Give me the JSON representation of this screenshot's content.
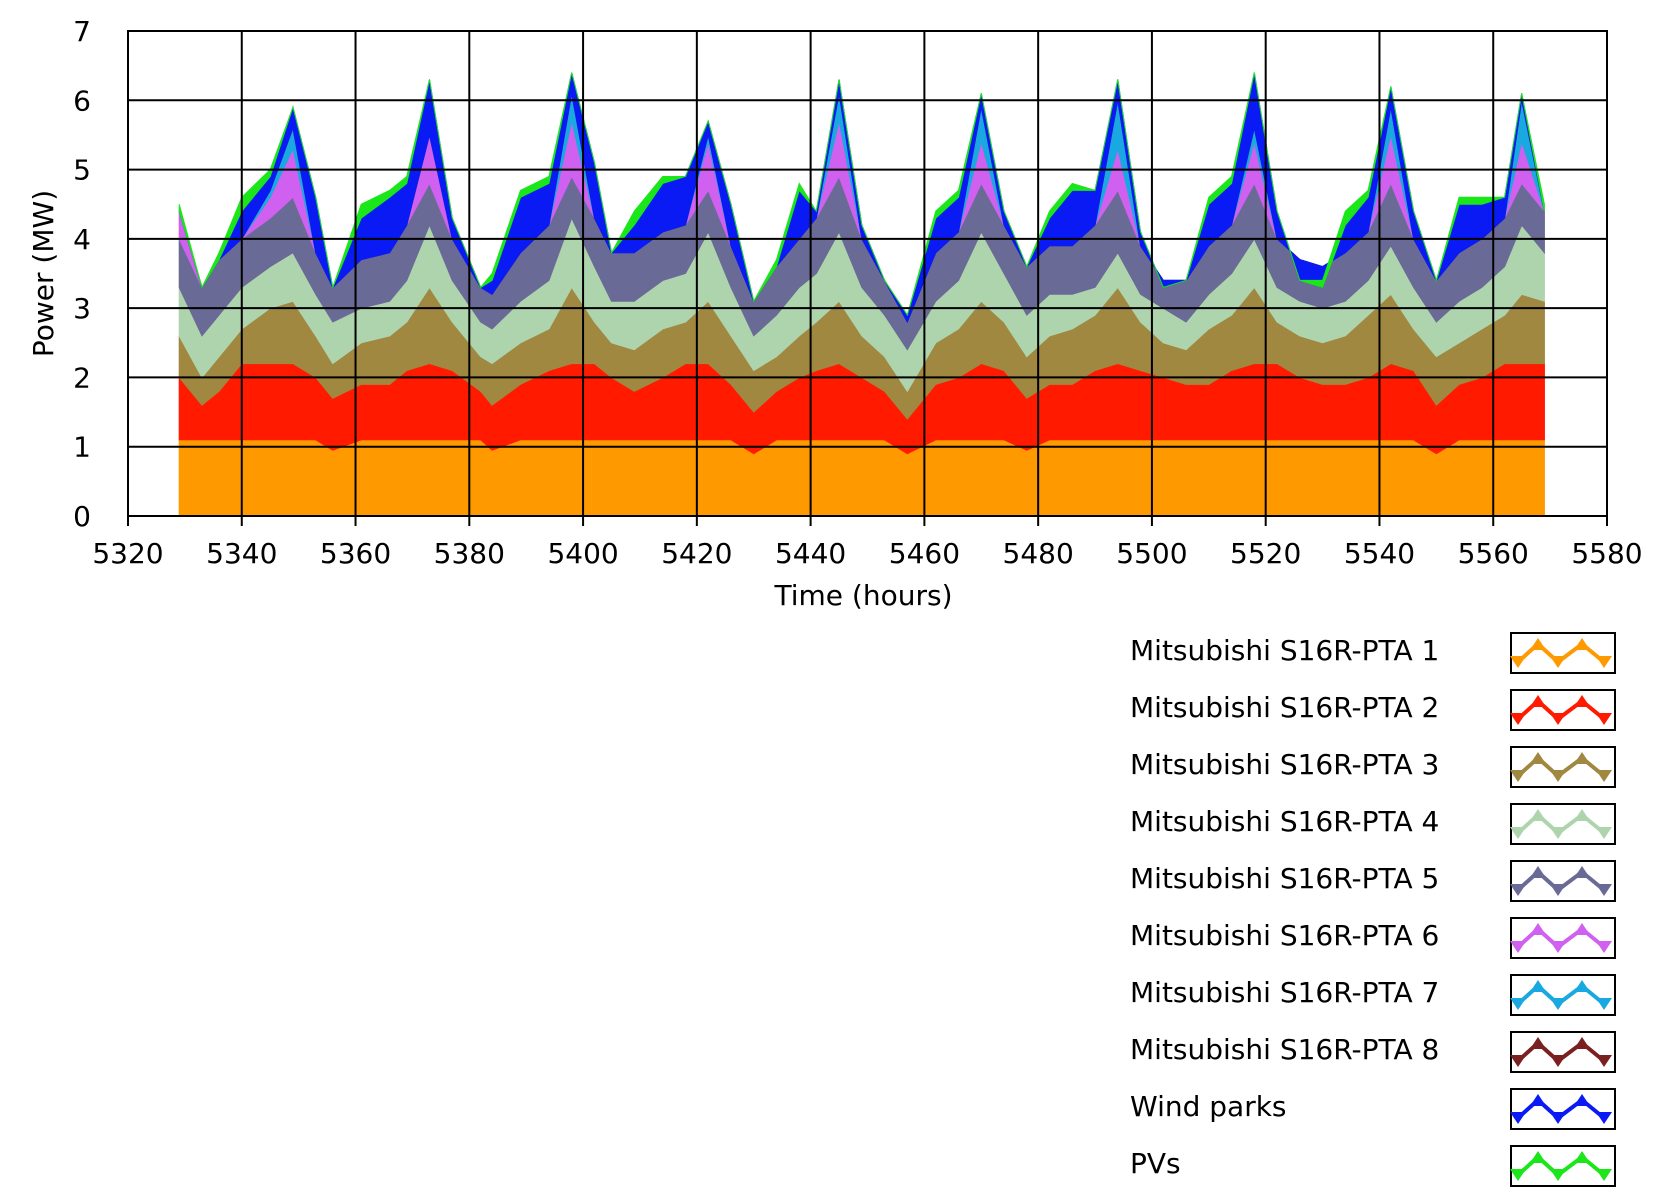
{
  "chart_data": {
    "type": "area",
    "stacked": true,
    "xlabel": "Time (hours)",
    "ylabel": "Power (MW)",
    "xlim": [
      5320,
      5580
    ],
    "ylim": [
      0,
      7
    ],
    "xticks": [
      5320,
      5340,
      5360,
      5380,
      5400,
      5420,
      5440,
      5460,
      5480,
      5500,
      5520,
      5540,
      5560,
      5580
    ],
    "yticks": [
      0,
      1,
      2,
      3,
      4,
      5,
      6,
      7
    ],
    "grid": true,
    "legend_position": "bottom-right",
    "series": [
      {
        "name": "Mitsubishi S16R-PTA 1",
        "color": "#ff9900"
      },
      {
        "name": "Mitsubishi S16R-PTA 2",
        "color": "#ff1a00"
      },
      {
        "name": "Mitsubishi S16R-PTA 3",
        "color": "#a08840"
      },
      {
        "name": "Mitsubishi S16R-PTA 4",
        "color": "#aed4ae"
      },
      {
        "name": "Mitsubishi S16R-PTA 5",
        "color": "#6a6a96"
      },
      {
        "name": "Mitsubishi S16R-PTA 6",
        "color": "#d060f0"
      },
      {
        "name": "Mitsubishi S16R-PTA 7",
        "color": "#1aa8e0"
      },
      {
        "name": "Mitsubishi S16R-PTA 8",
        "color": "#7a2020"
      },
      {
        "name": "Wind parks",
        "color": "#0a1af5"
      },
      {
        "name": "PVs",
        "color": "#1ae61a"
      }
    ],
    "x": [
      5329,
      5333,
      5336,
      5340,
      5345,
      5349,
      5353,
      5356,
      5361,
      5366,
      5369,
      5373,
      5377,
      5382,
      5384,
      5389,
      5394,
      5398,
      5402,
      5405,
      5409,
      5414,
      5418,
      5422,
      5426,
      5430,
      5434,
      5438,
      5441,
      5445,
      5449,
      5453,
      5457,
      5462,
      5466,
      5470,
      5474,
      5478,
      5482,
      5486,
      5490,
      5494,
      5498,
      5502,
      5506,
      5510,
      5514,
      5518,
      5522,
      5526,
      5530,
      5534,
      5538,
      5542,
      5546,
      5550,
      5554,
      5558,
      5562,
      5565,
      5569
    ],
    "cumulative_tops": [
      [
        1.1,
        1.1,
        1.1,
        1.1,
        1.1,
        1.1,
        1.1,
        0.95,
        1.1,
        1.1,
        1.1,
        1.1,
        1.1,
        1.1,
        0.95,
        1.1,
        1.1,
        1.1,
        1.1,
        1.1,
        1.1,
        1.1,
        1.1,
        1.1,
        1.1,
        0.9,
        1.1,
        1.1,
        1.1,
        1.1,
        1.1,
        1.1,
        0.9,
        1.1,
        1.1,
        1.1,
        1.1,
        0.95,
        1.1,
        1.1,
        1.1,
        1.1,
        1.1,
        1.1,
        1.1,
        1.1,
        1.1,
        1.1,
        1.1,
        1.1,
        1.1,
        1.1,
        1.1,
        1.1,
        1.1,
        0.9,
        1.1,
        1.1,
        1.1,
        1.1,
        1.1
      ],
      [
        2.0,
        1.6,
        1.8,
        2.2,
        2.2,
        2.2,
        2.0,
        1.7,
        1.9,
        1.9,
        2.1,
        2.2,
        2.1,
        1.8,
        1.6,
        1.9,
        2.1,
        2.2,
        2.2,
        2.0,
        1.8,
        2.0,
        2.2,
        2.2,
        1.9,
        1.5,
        1.8,
        2.0,
        2.1,
        2.2,
        2.0,
        1.8,
        1.4,
        1.9,
        2.0,
        2.2,
        2.1,
        1.7,
        1.9,
        1.9,
        2.1,
        2.2,
        2.1,
        2.0,
        1.9,
        1.9,
        2.1,
        2.2,
        2.2,
        2.0,
        1.9,
        1.9,
        2.0,
        2.2,
        2.1,
        1.6,
        1.9,
        2.0,
        2.2,
        2.2,
        2.2
      ],
      [
        2.6,
        2.0,
        2.3,
        2.7,
        3.0,
        3.1,
        2.6,
        2.2,
        2.5,
        2.6,
        2.8,
        3.3,
        2.8,
        2.3,
        2.2,
        2.5,
        2.7,
        3.3,
        2.8,
        2.5,
        2.4,
        2.7,
        2.8,
        3.1,
        2.6,
        2.1,
        2.3,
        2.6,
        2.8,
        3.1,
        2.6,
        2.3,
        1.8,
        2.5,
        2.7,
        3.1,
        2.8,
        2.3,
        2.6,
        2.7,
        2.9,
        3.3,
        2.8,
        2.5,
        2.4,
        2.7,
        2.9,
        3.3,
        2.8,
        2.6,
        2.5,
        2.6,
        2.9,
        3.2,
        2.7,
        2.3,
        2.5,
        2.7,
        2.9,
        3.2,
        3.1
      ],
      [
        3.3,
        2.6,
        2.9,
        3.3,
        3.6,
        3.8,
        3.2,
        2.8,
        3.0,
        3.1,
        3.4,
        4.2,
        3.4,
        2.8,
        2.7,
        3.1,
        3.4,
        4.3,
        3.6,
        3.1,
        3.1,
        3.4,
        3.5,
        4.1,
        3.3,
        2.6,
        2.9,
        3.3,
        3.5,
        4.1,
        3.3,
        2.9,
        2.4,
        3.1,
        3.4,
        4.1,
        3.5,
        2.9,
        3.2,
        3.2,
        3.3,
        3.8,
        3.2,
        3.0,
        2.8,
        3.2,
        3.5,
        4.0,
        3.3,
        3.1,
        3.0,
        3.1,
        3.4,
        3.9,
        3.3,
        2.8,
        3.1,
        3.3,
        3.6,
        4.2,
        3.8
      ],
      [
        4.0,
        3.3,
        3.7,
        4.0,
        4.3,
        4.6,
        3.8,
        3.3,
        3.7,
        3.8,
        4.2,
        4.8,
        4.0,
        3.3,
        3.2,
        3.8,
        4.2,
        4.9,
        4.3,
        3.8,
        3.8,
        4.1,
        4.2,
        4.7,
        3.9,
        3.1,
        3.6,
        4.0,
        4.3,
        4.9,
        4.0,
        3.4,
        2.8,
        3.8,
        4.1,
        4.8,
        4.2,
        3.6,
        3.9,
        3.9,
        4.2,
        4.7,
        3.9,
        3.4,
        3.4,
        3.9,
        4.2,
        4.8,
        4.0,
        3.7,
        3.6,
        3.8,
        4.1,
        4.8,
        4.0,
        3.4,
        3.8,
        4.0,
        4.3,
        4.8,
        4.4
      ],
      [
        4.4,
        3.3,
        3.7,
        4.0,
        4.6,
        5.3,
        3.8,
        3.3,
        3.7,
        3.8,
        4.2,
        5.5,
        4.0,
        3.3,
        3.2,
        3.8,
        4.2,
        5.7,
        4.3,
        3.8,
        3.8,
        4.1,
        4.2,
        5.4,
        3.9,
        3.1,
        3.6,
        4.0,
        4.3,
        5.7,
        4.0,
        3.4,
        2.8,
        3.8,
        4.1,
        5.4,
        4.2,
        3.6,
        3.9,
        3.9,
        4.2,
        5.3,
        3.9,
        3.4,
        3.4,
        3.9,
        4.2,
        5.4,
        4.0,
        3.7,
        3.6,
        3.8,
        4.1,
        5.5,
        4.0,
        3.4,
        3.8,
        4.0,
        4.3,
        5.4,
        4.4
      ],
      [
        4.4,
        3.3,
        3.7,
        4.0,
        4.7,
        5.6,
        3.8,
        3.3,
        3.7,
        3.8,
        4.2,
        5.5,
        4.0,
        3.3,
        3.2,
        3.8,
        4.2,
        6.1,
        4.3,
        3.8,
        3.8,
        4.1,
        4.2,
        5.5,
        3.9,
        3.1,
        3.6,
        4.0,
        4.3,
        6.1,
        4.0,
        3.4,
        2.8,
        3.8,
        4.1,
        5.9,
        4.2,
        3.6,
        3.9,
        3.9,
        4.2,
        6.0,
        3.9,
        3.4,
        3.4,
        3.9,
        4.2,
        5.6,
        4.0,
        3.7,
        3.6,
        3.8,
        4.1,
        5.9,
        4.0,
        3.4,
        3.8,
        4.0,
        4.3,
        6.0,
        4.4
      ],
      [
        4.4,
        3.3,
        3.7,
        4.0,
        4.7,
        5.6,
        3.8,
        3.3,
        3.7,
        3.8,
        4.2,
        5.5,
        4.0,
        3.3,
        3.2,
        3.8,
        4.2,
        6.1,
        4.3,
        3.8,
        3.8,
        4.1,
        4.2,
        5.5,
        3.9,
        3.1,
        3.6,
        4.0,
        4.3,
        6.1,
        4.0,
        3.4,
        2.8,
        3.8,
        4.1,
        5.9,
        4.2,
        3.6,
        3.9,
        3.9,
        4.2,
        6.0,
        3.9,
        3.4,
        3.4,
        3.9,
        4.2,
        5.6,
        4.0,
        3.7,
        3.6,
        3.8,
        4.1,
        5.9,
        4.0,
        3.4,
        3.8,
        4.0,
        4.3,
        6.0,
        4.4
      ],
      [
        4.4,
        3.3,
        3.7,
        4.4,
        4.9,
        5.9,
        4.6,
        3.3,
        4.3,
        4.6,
        4.8,
        6.3,
        4.3,
        3.3,
        3.4,
        4.6,
        4.8,
        6.4,
        5.1,
        3.8,
        4.2,
        4.8,
        4.9,
        5.7,
        4.5,
        3.1,
        3.6,
        4.7,
        4.4,
        6.3,
        4.2,
        3.4,
        2.9,
        4.3,
        4.6,
        6.1,
        4.4,
        3.6,
        4.3,
        4.7,
        4.7,
        6.3,
        4.1,
        3.3,
        3.4,
        4.5,
        4.8,
        6.4,
        4.4,
        3.4,
        3.3,
        4.2,
        4.6,
        6.2,
        4.4,
        3.4,
        4.5,
        4.5,
        4.6,
        6.1,
        4.4
      ],
      [
        4.5,
        3.3,
        3.8,
        4.6,
        5.0,
        5.9,
        4.6,
        3.3,
        4.5,
        4.7,
        4.9,
        6.3,
        4.3,
        3.3,
        3.5,
        4.7,
        4.9,
        6.4,
        5.1,
        3.8,
        4.4,
        4.9,
        4.9,
        5.7,
        4.5,
        3.1,
        3.7,
        4.8,
        4.4,
        6.3,
        4.2,
        3.4,
        2.9,
        4.4,
        4.7,
        6.1,
        4.4,
        3.6,
        4.4,
        4.8,
        4.7,
        6.3,
        4.1,
        3.3,
        3.4,
        4.6,
        4.9,
        6.4,
        4.4,
        3.4,
        3.4,
        4.4,
        4.7,
        6.2,
        4.4,
        3.4,
        4.6,
        4.6,
        4.6,
        6.1,
        4.5
      ]
    ]
  }
}
